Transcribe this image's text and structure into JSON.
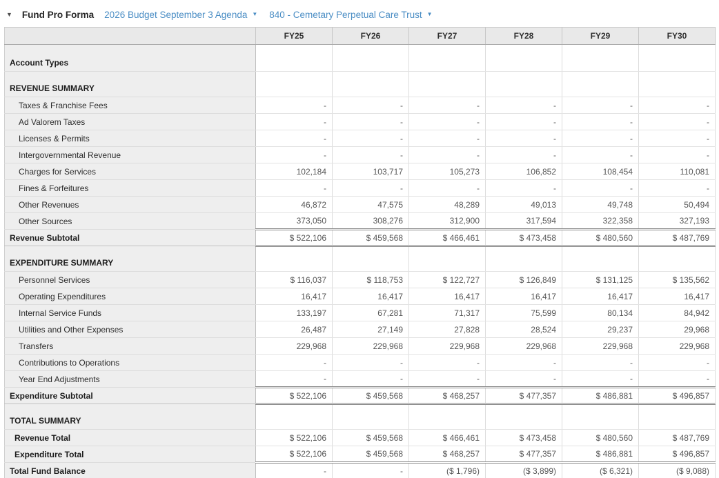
{
  "toolbar": {
    "collapse_caret_glyph": "▼",
    "title": "Fund Pro Forma",
    "budget_dropdown": {
      "label": "2026 Budget September 3 Agenda",
      "caret_glyph": "▼"
    },
    "fund_dropdown": {
      "label": "840 - Cemetary Perpetual Care Trust",
      "caret_glyph": "▼"
    }
  },
  "table": {
    "columns": [
      "FY25",
      "FY26",
      "FY27",
      "FY28",
      "FY29",
      "FY30"
    ],
    "rows": [
      {
        "label": "Account Types",
        "type": "section",
        "values": [
          "",
          "",
          "",
          "",
          "",
          ""
        ]
      },
      {
        "label": "REVENUE SUMMARY",
        "type": "section",
        "values": [
          "",
          "",
          "",
          "",
          "",
          ""
        ]
      },
      {
        "label": "Taxes & Franchise Fees",
        "type": "detail",
        "values": [
          "-",
          "-",
          "-",
          "-",
          "-",
          "-"
        ]
      },
      {
        "label": "Ad Valorem Taxes",
        "type": "detail",
        "values": [
          "-",
          "-",
          "-",
          "-",
          "-",
          "-"
        ]
      },
      {
        "label": "Licenses & Permits",
        "type": "detail",
        "values": [
          "-",
          "-",
          "-",
          "-",
          "-",
          "-"
        ]
      },
      {
        "label": "Intergovernmental Revenue",
        "type": "detail",
        "values": [
          "-",
          "-",
          "-",
          "-",
          "-",
          "-"
        ]
      },
      {
        "label": "Charges for Services",
        "type": "detail",
        "values": [
          "102,184",
          "103,717",
          "105,273",
          "106,852",
          "108,454",
          "110,081"
        ]
      },
      {
        "label": "Fines & Forfeitures",
        "type": "detail",
        "values": [
          "-",
          "-",
          "-",
          "-",
          "-",
          "-"
        ]
      },
      {
        "label": "Other Revenues",
        "type": "detail",
        "values": [
          "46,872",
          "47,575",
          "48,289",
          "49,013",
          "49,748",
          "50,494"
        ]
      },
      {
        "label": "Other Sources",
        "type": "detail",
        "values": [
          "373,050",
          "308,276",
          "312,900",
          "317,594",
          "322,358",
          "327,193"
        ]
      },
      {
        "label": "Revenue Subtotal",
        "type": "subtotal",
        "values": [
          "$ 522,106",
          "$ 459,568",
          "$ 466,461",
          "$ 473,458",
          "$ 480,560",
          "$ 487,769"
        ]
      },
      {
        "label": "EXPENDITURE SUMMARY",
        "type": "section",
        "values": [
          "",
          "",
          "",
          "",
          "",
          ""
        ]
      },
      {
        "label": "Personnel Services",
        "type": "detail",
        "values": [
          "$ 116,037",
          "$ 118,753",
          "$ 122,727",
          "$ 126,849",
          "$ 131,125",
          "$ 135,562"
        ]
      },
      {
        "label": "Operating Expenditures",
        "type": "detail",
        "values": [
          "16,417",
          "16,417",
          "16,417",
          "16,417",
          "16,417",
          "16,417"
        ]
      },
      {
        "label": "Internal Service Funds",
        "type": "detail",
        "values": [
          "133,197",
          "67,281",
          "71,317",
          "75,599",
          "80,134",
          "84,942"
        ]
      },
      {
        "label": "Utilities and Other Expenses",
        "type": "detail",
        "values": [
          "26,487",
          "27,149",
          "27,828",
          "28,524",
          "29,237",
          "29,968"
        ]
      },
      {
        "label": "Transfers",
        "type": "detail",
        "values": [
          "229,968",
          "229,968",
          "229,968",
          "229,968",
          "229,968",
          "229,968"
        ]
      },
      {
        "label": "Contributions to Operations",
        "type": "detail",
        "values": [
          "-",
          "-",
          "-",
          "-",
          "-",
          "-"
        ]
      },
      {
        "label": "Year End Adjustments",
        "type": "detail",
        "values": [
          "-",
          "-",
          "-",
          "-",
          "-",
          "-"
        ]
      },
      {
        "label": "Expenditure Subtotal",
        "type": "subtotal",
        "values": [
          "$ 522,106",
          "$ 459,568",
          "$ 468,257",
          "$ 477,357",
          "$ 486,881",
          "$ 496,857"
        ]
      },
      {
        "label": "TOTAL SUMMARY",
        "type": "section",
        "values": [
          "",
          "",
          "",
          "",
          "",
          ""
        ]
      },
      {
        "label": "Revenue Total",
        "type": "total-detail",
        "values": [
          "$ 522,106",
          "$ 459,568",
          "$ 466,461",
          "$ 473,458",
          "$ 480,560",
          "$ 487,769"
        ]
      },
      {
        "label": "Expenditure Total",
        "type": "total-detail",
        "values": [
          "$ 522,106",
          "$ 459,568",
          "$ 468,257",
          "$ 477,357",
          "$ 486,881",
          "$ 496,857"
        ]
      },
      {
        "label": "Total Fund Balance",
        "type": "grand",
        "values": [
          "-",
          "-",
          "($ 1,796)",
          "($ 3,899)",
          "($ 6,321)",
          "($ 9,088)"
        ]
      }
    ]
  }
}
